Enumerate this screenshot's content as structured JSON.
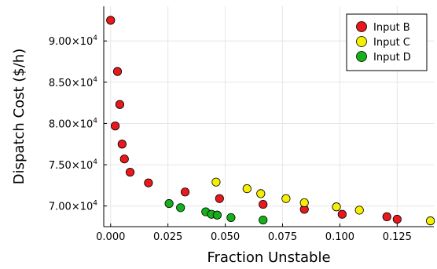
{
  "chart_data": {
    "type": "scatter",
    "title": "",
    "xlabel": "Fraction Unstable",
    "ylabel": "Dispatch Cost ($/h)",
    "xlim": [
      -0.003,
      0.141
    ],
    "ylim": [
      67500,
      94200
    ],
    "x_ticks": [
      {
        "value": 0.0,
        "label": "0.000"
      },
      {
        "value": 0.025,
        "label": "0.025"
      },
      {
        "value": 0.05,
        "label": "0.050"
      },
      {
        "value": 0.075,
        "label": "0.075"
      },
      {
        "value": 0.1,
        "label": "0.100"
      },
      {
        "value": 0.125,
        "label": "0.125"
      }
    ],
    "y_ticks": [
      {
        "value": 70000,
        "mantissa": "7.00",
        "exp": "4"
      },
      {
        "value": 75000,
        "mantissa": "7.50",
        "exp": "4"
      },
      {
        "value": 80000,
        "mantissa": "8.00",
        "exp": "4"
      },
      {
        "value": 85000,
        "mantissa": "8.50",
        "exp": "4"
      },
      {
        "value": 90000,
        "mantissa": "9.00",
        "exp": "4"
      }
    ],
    "tick_times": "×10",
    "grid": true,
    "legend_position": "top-right",
    "series": [
      {
        "name": "Input B",
        "color": "#e8181d",
        "points": [
          [
            0.0,
            92500
          ],
          [
            0.003,
            86300
          ],
          [
            0.004,
            82300
          ],
          [
            0.002,
            79700
          ],
          [
            0.005,
            77500
          ],
          [
            0.006,
            75700
          ],
          [
            0.0085,
            74100
          ],
          [
            0.0165,
            72800
          ],
          [
            0.0325,
            71700
          ],
          [
            0.0475,
            70900
          ],
          [
            0.0665,
            70200
          ],
          [
            0.0845,
            69600
          ],
          [
            0.101,
            69000
          ],
          [
            0.1205,
            68700
          ],
          [
            0.125,
            68400
          ]
        ]
      },
      {
        "name": "Input C",
        "color": "#f5f000",
        "points": [
          [
            0.046,
            72900
          ],
          [
            0.0595,
            72100
          ],
          [
            0.0655,
            71500
          ],
          [
            0.0765,
            70900
          ],
          [
            0.0845,
            70400
          ],
          [
            0.0985,
            69900
          ],
          [
            0.1085,
            69500
          ],
          [
            0.1395,
            68200
          ]
        ]
      },
      {
        "name": "Input D",
        "color": "#15b01a",
        "points": [
          [
            0.0255,
            70300
          ],
          [
            0.0305,
            69800
          ],
          [
            0.0415,
            69300
          ],
          [
            0.044,
            69000
          ],
          [
            0.0465,
            68900
          ],
          [
            0.0525,
            68600
          ],
          [
            0.0665,
            68300
          ]
        ]
      }
    ]
  }
}
